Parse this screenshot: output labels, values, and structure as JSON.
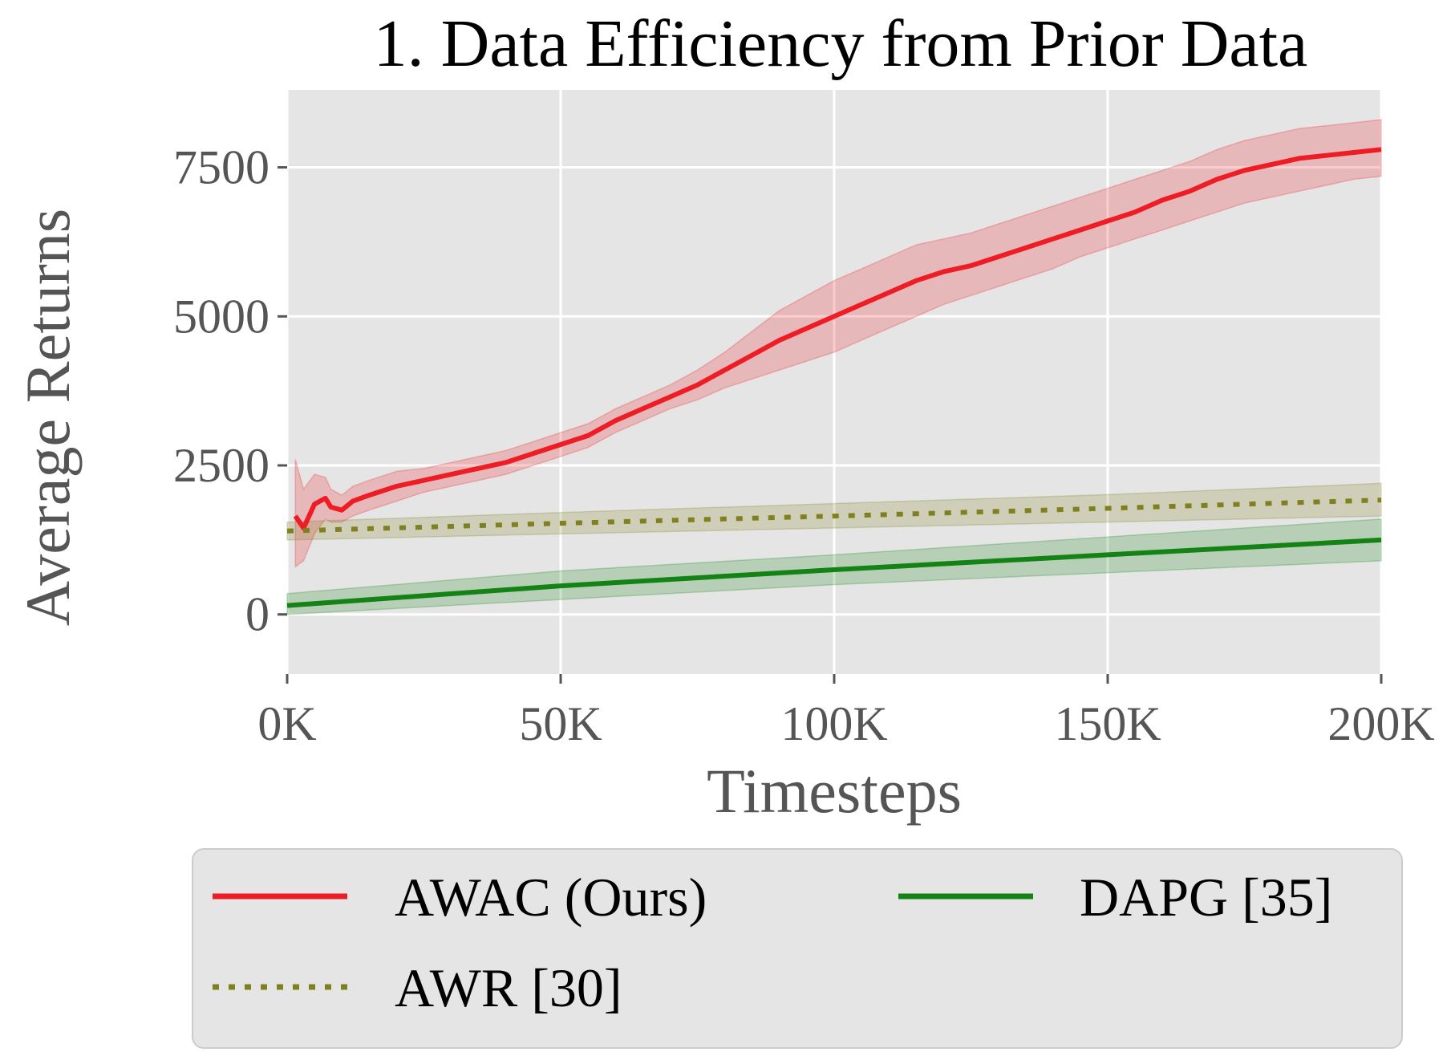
{
  "chart_data": {
    "type": "line",
    "title": "1. Data Efficiency from Prior Data",
    "xlabel": "Timesteps",
    "ylabel": "Average Returns",
    "xlim": [
      0,
      200000
    ],
    "ylim": [
      -1000,
      8800
    ],
    "x_ticks": [
      0,
      50000,
      100000,
      150000,
      200000
    ],
    "x_tick_labels": [
      "0K",
      "50K",
      "100K",
      "150K",
      "200K"
    ],
    "y_ticks": [
      0,
      2500,
      5000,
      7500
    ],
    "y_tick_labels": [
      "0",
      "2500",
      "5000",
      "7500"
    ],
    "grid": true,
    "legend_position": "below",
    "series": [
      {
        "name": "AWAC (Ours)",
        "color": "#ee1c25",
        "style": "solid",
        "x": [
          1500,
          3000,
          5000,
          7000,
          8000,
          10000,
          12000,
          15000,
          20000,
          25000,
          30000,
          35000,
          40000,
          45000,
          50000,
          55000,
          60000,
          65000,
          70000,
          75000,
          80000,
          85000,
          90000,
          95000,
          100000,
          105000,
          110000,
          115000,
          120000,
          125000,
          130000,
          135000,
          140000,
          145000,
          150000,
          155000,
          160000,
          165000,
          170000,
          175000,
          180000,
          185000,
          190000,
          195000,
          200000
        ],
        "y": [
          1650,
          1450,
          1850,
          1950,
          1800,
          1750,
          1900,
          2000,
          2150,
          2250,
          2350,
          2450,
          2550,
          2700,
          2850,
          3000,
          3250,
          3450,
          3650,
          3850,
          4100,
          4350,
          4600,
          4800,
          5000,
          5200,
          5400,
          5600,
          5750,
          5850,
          6000,
          6150,
          6300,
          6450,
          6600,
          6750,
          6950,
          7100,
          7300,
          7450,
          7550,
          7650,
          7700,
          7750,
          7800
        ],
        "lower": [
          800,
          900,
          1350,
          1600,
          1550,
          1550,
          1650,
          1750,
          1900,
          2050,
          2150,
          2250,
          2350,
          2500,
          2650,
          2800,
          3050,
          3250,
          3450,
          3600,
          3800,
          3950,
          4100,
          4250,
          4400,
          4600,
          4800,
          5000,
          5200,
          5350,
          5500,
          5650,
          5800,
          6000,
          6150,
          6300,
          6450,
          6600,
          6750,
          6900,
          7000,
          7100,
          7200,
          7300,
          7350
        ],
        "upper": [
          2600,
          2100,
          2350,
          2300,
          2100,
          2000,
          2150,
          2250,
          2400,
          2450,
          2550,
          2650,
          2750,
          2900,
          3050,
          3200,
          3450,
          3650,
          3850,
          4100,
          4400,
          4750,
          5100,
          5350,
          5600,
          5800,
          6000,
          6200,
          6300,
          6400,
          6550,
          6700,
          6850,
          7000,
          7150,
          7300,
          7450,
          7600,
          7800,
          7950,
          8050,
          8150,
          8200,
          8250,
          8300
        ]
      },
      {
        "name": "AWR [30]",
        "color": "#808020",
        "style": "dotted",
        "x": [
          0,
          50000,
          100000,
          150000,
          200000
        ],
        "y": [
          1400,
          1530,
          1650,
          1780,
          1920
        ],
        "lower": [
          1250,
          1350,
          1450,
          1550,
          1650
        ],
        "upper": [
          1550,
          1710,
          1860,
          2010,
          2200
        ]
      },
      {
        "name": "DAPG [35]",
        "color": "#148214",
        "style": "solid",
        "x": [
          0,
          50000,
          100000,
          150000,
          200000
        ],
        "y": [
          150,
          480,
          750,
          1000,
          1250
        ],
        "lower": [
          0,
          250,
          500,
          700,
          900
        ],
        "upper": [
          350,
          730,
          1000,
          1300,
          1600
        ]
      }
    ]
  }
}
